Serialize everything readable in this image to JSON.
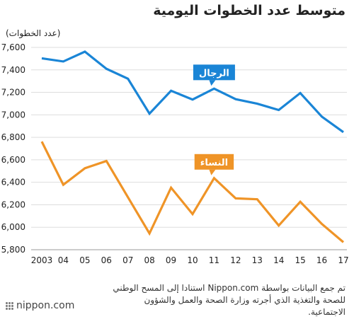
{
  "title": "متوسط عدد الخطوات اليومية",
  "source_text": "تم جمع البيانات بواسطة Nippon.com استنادا إلى المسح الوطني للصحة والتغذية الذي أجرته وزارة الصحة والعمل والشؤون الاجتماعية.",
  "logo_text": "nippon.com",
  "chart_data": {
    "type": "line",
    "ylabel": "(عدد الخطوات)",
    "xlabel": "",
    "categories": [
      "2003",
      "04",
      "05",
      "06",
      "07",
      "08",
      "09",
      "10",
      "11",
      "12",
      "13",
      "14",
      "15",
      "16",
      "17"
    ],
    "ylim": [
      5800,
      7600
    ],
    "yticks": [
      5800,
      6000,
      6200,
      6400,
      6600,
      6800,
      7000,
      7200,
      7400,
      7600
    ],
    "ytick_labels": [
      "5,800",
      "6,000",
      "6,200",
      "6,400",
      "6,600",
      "6,800",
      "7,000",
      "7,200",
      "7,400",
      "7,600"
    ],
    "grid": true,
    "series": [
      {
        "name": "الرجال",
        "color": "#1a85d6",
        "values": [
          7503,
          7475,
          7562,
          7410,
          7321,
          7011,
          7214,
          7136,
          7233,
          7139,
          7099,
          7043,
          7194,
          6984,
          6846
        ]
      },
      {
        "name": "النساء",
        "color": "#ef9427",
        "values": [
          6762,
          6378,
          6525,
          6589,
          6267,
          5945,
          6352,
          6117,
          6437,
          6257,
          6249,
          6015,
          6227,
          6029,
          5867
        ]
      }
    ]
  }
}
